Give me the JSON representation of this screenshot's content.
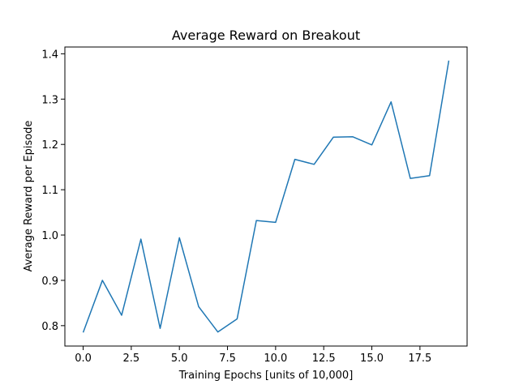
{
  "chart_data": {
    "type": "line",
    "title": "Average Reward on Breakout",
    "xlabel": "Training Epochs [units of 10,000]",
    "ylabel": "Average Reward per Episode",
    "xlim": [
      -0.95,
      19.95
    ],
    "ylim": [
      0.755,
      1.415
    ],
    "xticks": [
      0.0,
      2.5,
      5.0,
      7.5,
      10.0,
      12.5,
      15.0,
      17.5
    ],
    "xtick_labels": [
      "0.0",
      "2.5",
      "5.0",
      "7.5",
      "10.0",
      "12.5",
      "15.0",
      "17.5"
    ],
    "yticks": [
      0.8,
      0.9,
      1.0,
      1.1,
      1.2,
      1.3,
      1.4
    ],
    "ytick_labels": [
      "0.8",
      "0.9",
      "1.0",
      "1.1",
      "1.2",
      "1.3",
      "1.4"
    ],
    "grid": false,
    "series": [
      {
        "color": "#1f77b4",
        "x": [
          0,
          1,
          2,
          3,
          4,
          5,
          6,
          7,
          8,
          9,
          10,
          11,
          12,
          13,
          14,
          15,
          16,
          17,
          18,
          19
        ],
        "y": [
          0.785,
          0.9,
          0.823,
          0.991,
          0.794,
          0.994,
          0.842,
          0.786,
          0.815,
          1.032,
          1.028,
          1.167,
          1.156,
          1.216,
          1.217,
          1.199,
          1.294,
          1.125,
          1.131,
          1.385
        ]
      }
    ]
  }
}
